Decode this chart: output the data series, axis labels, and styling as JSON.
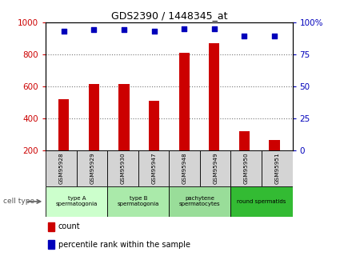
{
  "title": "GDS2390 / 1448345_at",
  "samples": [
    "GSM95928",
    "GSM95929",
    "GSM95930",
    "GSM95947",
    "GSM95948",
    "GSM95949",
    "GSM95950",
    "GSM95951"
  ],
  "counts": [
    520,
    615,
    615,
    510,
    810,
    870,
    320,
    265
  ],
  "percentile_ranks": [
    93,
    94,
    94,
    93,
    95,
    95,
    89,
    89
  ],
  "ylim_left": [
    200,
    1000
  ],
  "ylim_right": [
    0,
    100
  ],
  "yticks_left": [
    200,
    400,
    600,
    800,
    1000
  ],
  "yticks_right": [
    0,
    25,
    50,
    75,
    100
  ],
  "bar_color": "#cc0000",
  "dot_color": "#0000bb",
  "bar_bottom": 200,
  "cell_groups": [
    {
      "label": "type A\nspermatogonia",
      "start": 0,
      "end": 2,
      "color": "#ccffcc"
    },
    {
      "label": "type B\nspermatogonia",
      "start": 2,
      "end": 4,
      "color": "#aaeaaa"
    },
    {
      "label": "pachytene\nspermatocytes",
      "start": 4,
      "end": 6,
      "color": "#99dd99"
    },
    {
      "label": "round spermatids",
      "start": 6,
      "end": 8,
      "color": "#33bb33"
    }
  ],
  "cell_type_label": "cell type",
  "legend_count_label": "count",
  "legend_percentile_label": "percentile rank within the sample",
  "grid_color": "#777777",
  "tick_label_color_left": "#cc0000",
  "tick_label_color_right": "#0000bb",
  "background_color": "#ffffff",
  "sample_box_color": "#d4d4d4"
}
